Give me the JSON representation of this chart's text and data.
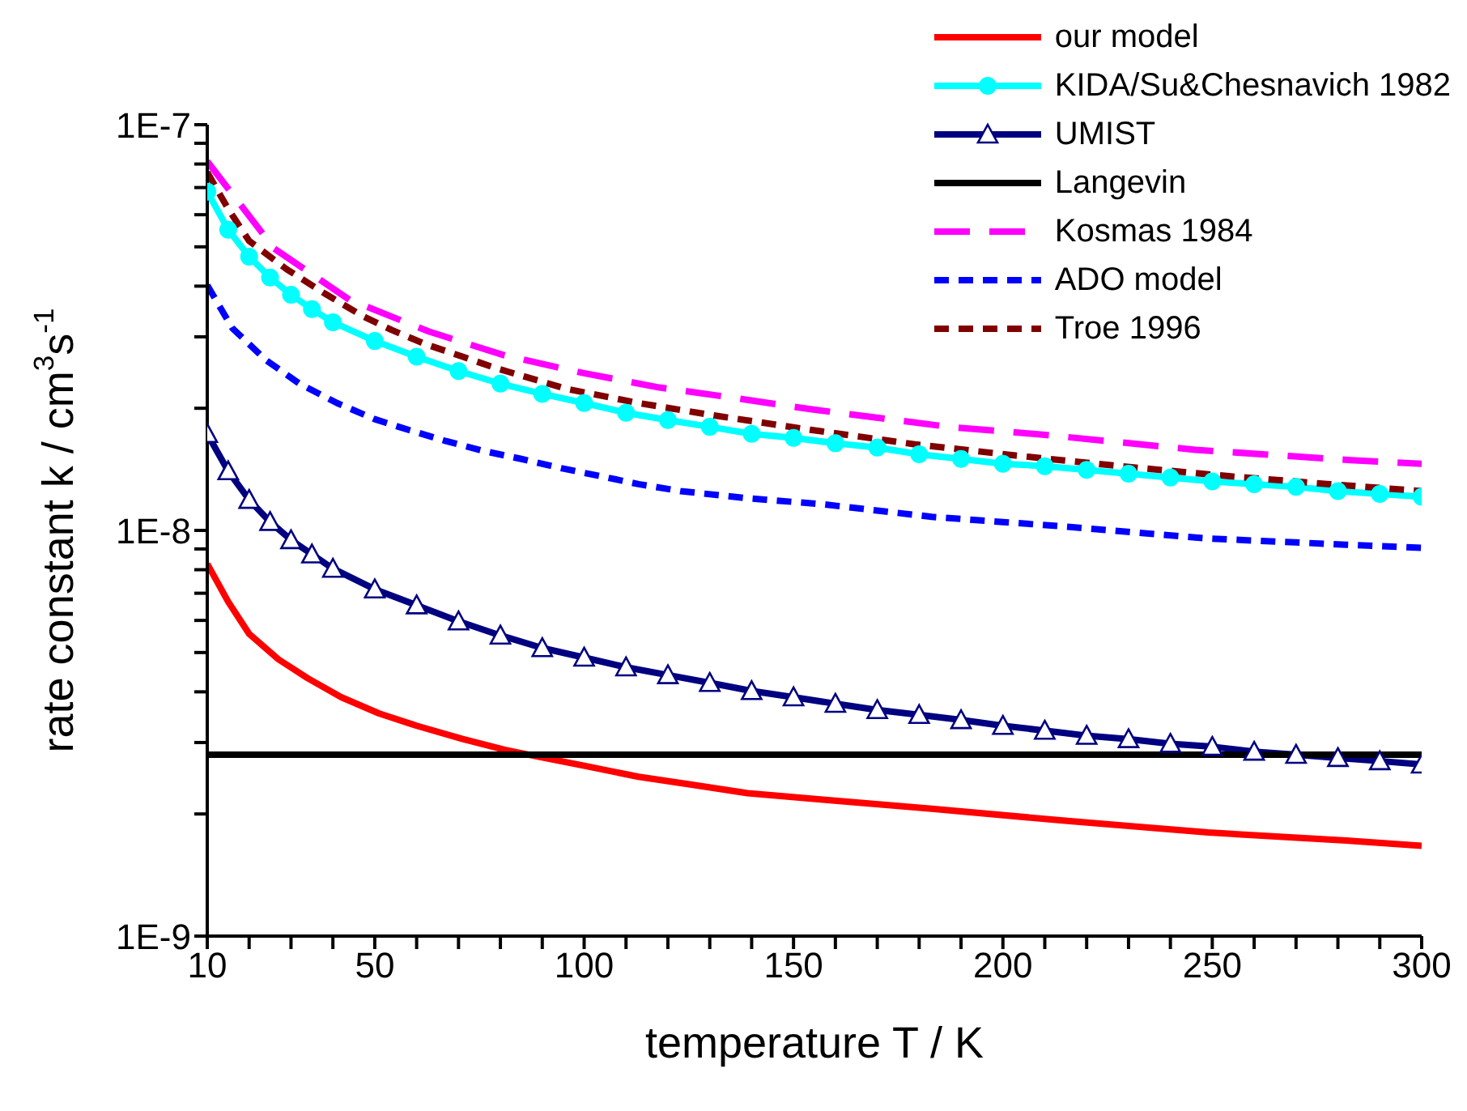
{
  "chart_data": {
    "type": "line",
    "xlabel": "temperature T / K",
    "ylabel": "rate constant k / cm$^{3}$s$^{-1}$",
    "log": "y",
    "legend": "top right",
    "grid": false,
    "xlim": [
      10,
      300
    ],
    "xticks": [
      10,
      {
        "value": 20,
        "label": null
      },
      {
        "value": 30,
        "label": null
      },
      {
        "value": 40,
        "label": null
      },
      50,
      {
        "value": 60,
        "label": null
      },
      {
        "value": 70,
        "label": null
      },
      {
        "value": 80,
        "label": null
      },
      {
        "value": 90,
        "label": null
      },
      100,
      {
        "value": 110,
        "label": null
      },
      {
        "value": 120,
        "label": null
      },
      {
        "value": 130,
        "label": null
      },
      {
        "value": 140,
        "label": null
      },
      150,
      {
        "value": 160,
        "label": null
      },
      {
        "value": 170,
        "label": null
      },
      {
        "value": 180,
        "label": null
      },
      {
        "value": 190,
        "label": null
      },
      200,
      {
        "value": 210,
        "label": null
      },
      {
        "value": 220,
        "label": null
      },
      {
        "value": 230,
        "label": null
      },
      {
        "value": 240,
        "label": null
      },
      250,
      {
        "value": 260,
        "label": null
      },
      {
        "value": 270,
        "label": null
      },
      {
        "value": 280,
        "label": null
      },
      {
        "value": 290,
        "label": null
      },
      300
    ],
    "ylim": [
      1e-09,
      1e-07
    ],
    "yticks": [
      {
        "value": 1e-09,
        "label": "1E-9"
      },
      {
        "value": 2e-09,
        "label": null
      },
      {
        "value": 3e-09,
        "label": null
      },
      {
        "value": 4e-09,
        "label": null
      },
      {
        "value": 5e-09,
        "label": null
      },
      {
        "value": 6e-09,
        "label": null
      },
      {
        "value": 7e-09,
        "label": null
      },
      {
        "value": 8e-09,
        "label": null
      },
      {
        "value": 9e-09,
        "label": null
      },
      {
        "value": 1e-08,
        "label": "1E-8"
      },
      {
        "value": 2e-08,
        "label": null
      },
      {
        "value": 3e-08,
        "label": null
      },
      {
        "value": 4e-08,
        "label": null
      },
      {
        "value": 5e-08,
        "label": null
      },
      {
        "value": 6e-08,
        "label": null
      },
      {
        "value": 7e-08,
        "label": null
      },
      {
        "value": 8e-08,
        "label": null
      },
      {
        "value": 9e-08,
        "label": null
      },
      {
        "value": 1e-07,
        "label": "1E-7"
      }
    ],
    "series": [
      {
        "name": "our model",
        "color": "#ff0000",
        "line_style": "solid",
        "marker": "none",
        "x": [
          10,
          15,
          20,
          27,
          34,
          42,
          51,
          60,
          71,
          81,
          89,
          100,
          113,
          126,
          139,
          157,
          183,
          216,
          249,
          282,
          300
        ],
        "values": [
          8.27e-09,
          6.67e-09,
          5.56e-09,
          4.81e-09,
          4.32e-09,
          3.88e-09,
          3.54e-09,
          3.3e-09,
          3.06e-09,
          2.88e-09,
          2.77e-09,
          2.63e-09,
          2.47e-09,
          2.36e-09,
          2.25e-09,
          2.17e-09,
          2.06e-09,
          1.92e-09,
          1.8e-09,
          1.72e-09,
          1.67e-09
        ]
      },
      {
        "name": "KIDA/Su&Chesnavich 1982",
        "color": "#00ffff",
        "line_style": "solid",
        "marker": "circle",
        "x": [
          10,
          15,
          20,
          25,
          30,
          35,
          40,
          50,
          60,
          70,
          80,
          90,
          100,
          110,
          120,
          130,
          140,
          150,
          160,
          170,
          180,
          190,
          200,
          210,
          220,
          230,
          240,
          250,
          260,
          270,
          280,
          290,
          300
        ],
        "values": [
          6.84e-08,
          5.51e-08,
          4.73e-08,
          4.2e-08,
          3.81e-08,
          3.51e-08,
          3.26e-08,
          2.93e-08,
          2.68e-08,
          2.47e-08,
          2.3e-08,
          2.17e-08,
          2.06e-08,
          1.95e-08,
          1.87e-08,
          1.8e-08,
          1.73e-08,
          1.69e-08,
          1.64e-08,
          1.6e-08,
          1.54e-08,
          1.5e-08,
          1.46e-08,
          1.44e-08,
          1.41e-08,
          1.38e-08,
          1.35e-08,
          1.32e-08,
          1.3e-08,
          1.28e-08,
          1.25e-08,
          1.23e-08,
          1.21e-08
        ]
      },
      {
        "name": "UMIST",
        "color": "#000080",
        "line_style": "solid",
        "marker": "triangle",
        "x": [
          10,
          15,
          20,
          25,
          30,
          35,
          40,
          50,
          60,
          70,
          80,
          90,
          100,
          110,
          120,
          130,
          140,
          150,
          160,
          170,
          180,
          190,
          200,
          210,
          220,
          230,
          240,
          250,
          260,
          270,
          280,
          290,
          300
        ],
        "values": [
          1.73e-08,
          1.4e-08,
          1.19e-08,
          1.05e-08,
          9.47e-09,
          8.73e-09,
          8.05e-09,
          7.16e-09,
          6.54e-09,
          5.97e-09,
          5.51e-09,
          5.13e-09,
          4.86e-09,
          4.6e-09,
          4.4e-09,
          4.21e-09,
          4.02e-09,
          3.88e-09,
          3.74e-09,
          3.61e-09,
          3.51e-09,
          3.41e-09,
          3.3e-09,
          3.21e-09,
          3.12e-09,
          3.06e-09,
          2.98e-09,
          2.93e-09,
          2.85e-09,
          2.8e-09,
          2.75e-09,
          2.7e-09,
          2.65e-09
        ]
      },
      {
        "name": "Langevin",
        "color": "#000000",
        "line_style": "solid",
        "marker": "none",
        "x": [
          10,
          300
        ],
        "values": [
          2.8e-09,
          2.8e-09
        ]
      },
      {
        "name": "Kosmas 1984",
        "color": "#ff00ff",
        "line_style": "dashed",
        "marker": "none",
        "x": [
          10,
          26,
          44,
          63,
          81,
          100,
          118,
          136,
          154,
          187,
          210,
          246,
          283,
          300
        ],
        "values": [
          8.12e-08,
          4.95e-08,
          3.7e-08,
          3.09e-08,
          2.7e-08,
          2.44e-08,
          2.25e-08,
          2.12e-08,
          1.99e-08,
          1.8e-08,
          1.72e-08,
          1.58e-08,
          1.49e-08,
          1.46e-08
        ]
      },
      {
        "name": "ADO model",
        "color": "#0000ff",
        "line_style": "dotted",
        "marker": "none",
        "x": [
          10,
          16,
          24,
          32,
          41,
          50,
          58,
          67,
          76,
          85,
          95,
          104,
          113,
          123,
          139,
          157,
          183,
          216,
          249,
          282,
          300
        ],
        "values": [
          4.02e-08,
          3.15e-08,
          2.63e-08,
          2.3e-08,
          2.06e-08,
          1.88e-08,
          1.77e-08,
          1.66e-08,
          1.57e-08,
          1.5e-08,
          1.42e-08,
          1.36e-08,
          1.3e-08,
          1.25e-08,
          1.2e-08,
          1.16e-08,
          1.08e-08,
          1.02e-08,
          9.55e-09,
          9.22e-09,
          9.06e-09
        ]
      },
      {
        "name": "Troe 1996",
        "color": "#800000",
        "line_style": "dotted",
        "marker": "none",
        "x": [
          10,
          15,
          20,
          29,
          38,
          47,
          54,
          62,
          71,
          79,
          96,
          113,
          131,
          154,
          179,
          203,
          228,
          254,
          278,
          300
        ],
        "values": [
          7.63e-08,
          6.2e-08,
          5.17e-08,
          4.4e-08,
          3.84e-08,
          3.38e-08,
          3.12e-08,
          2.88e-08,
          2.68e-08,
          2.51e-08,
          2.23e-08,
          2.06e-08,
          1.92e-08,
          1.77e-08,
          1.63e-08,
          1.53e-08,
          1.44e-08,
          1.36e-08,
          1.3e-08,
          1.25e-08
        ]
      }
    ]
  }
}
